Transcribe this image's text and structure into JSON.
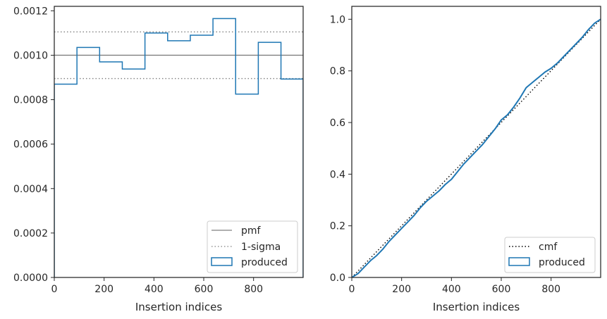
{
  "chart_data": [
    {
      "type": "histogram-step",
      "xlabel": "Insertion indices",
      "ylabel": "",
      "xlim": [
        0,
        999
      ],
      "ylim": [
        0,
        0.00122
      ],
      "xticks": [
        0,
        200,
        400,
        600,
        800
      ],
      "xtick_labels": [
        "0",
        "200",
        "400",
        "600",
        "800"
      ],
      "yticks": [
        0,
        0.0002,
        0.0004,
        0.0006,
        0.0008,
        0.001,
        0.0012
      ],
      "ytick_labels": [
        "0.0000",
        "0.0002",
        "0.0004",
        "0.0006",
        "0.0008",
        "0.0010",
        "0.0012"
      ],
      "reference_lines": [
        {
          "name": "pmf",
          "y": 0.001,
          "style": "solid",
          "color": "#808080"
        },
        {
          "name": "1-sigma",
          "y": [
            0.000895,
            0.001105
          ],
          "style": "dotted",
          "color": "#808080"
        }
      ],
      "series": [
        {
          "name": "produced",
          "color": "#1f77b4",
          "bin_edges": [
            0,
            91,
            182,
            273,
            364,
            455,
            546,
            637,
            728,
            819,
            910,
            999
          ],
          "values": [
            0.00087,
            0.001035,
            0.00097,
            0.000938,
            0.0011,
            0.001065,
            0.00109,
            0.001165,
            0.000825,
            0.001058,
            0.000893
          ]
        }
      ],
      "legend": {
        "placement": "lower-right",
        "entries": [
          "pmf",
          "1-sigma",
          "produced"
        ]
      }
    },
    {
      "type": "line",
      "xlabel": "Insertion indices",
      "ylabel": "",
      "xlim": [
        0,
        999
      ],
      "ylim": [
        0,
        1.05
      ],
      "xticks": [
        0,
        200,
        400,
        600,
        800
      ],
      "xtick_labels": [
        "0",
        "200",
        "400",
        "600",
        "800"
      ],
      "yticks": [
        0,
        0.2,
        0.4,
        0.6,
        0.8,
        1.0
      ],
      "ytick_labels": [
        "0.0",
        "0.2",
        "0.4",
        "0.6",
        "0.8",
        "1.0"
      ],
      "series": [
        {
          "name": "cmf",
          "style": "dotted",
          "color": "#000000",
          "x": [
            0,
            999
          ],
          "y": [
            0,
            1.0
          ]
        },
        {
          "name": "produced",
          "style": "solid",
          "color": "#1f77b4",
          "x": [
            0,
            25,
            50,
            75,
            100,
            125,
            150,
            175,
            200,
            225,
            250,
            275,
            300,
            325,
            350,
            375,
            400,
            425,
            450,
            475,
            500,
            525,
            550,
            575,
            600,
            625,
            650,
            675,
            700,
            725,
            750,
            775,
            800,
            825,
            850,
            875,
            900,
            925,
            950,
            975,
            999
          ],
          "y": [
            0,
            0.015,
            0.04,
            0.065,
            0.085,
            0.11,
            0.14,
            0.165,
            0.19,
            0.215,
            0.24,
            0.27,
            0.295,
            0.315,
            0.335,
            0.36,
            0.38,
            0.41,
            0.44,
            0.465,
            0.49,
            0.515,
            0.545,
            0.575,
            0.61,
            0.63,
            0.66,
            0.695,
            0.735,
            0.755,
            0.775,
            0.795,
            0.81,
            0.83,
            0.855,
            0.88,
            0.905,
            0.93,
            0.96,
            0.985,
            1.0
          ]
        }
      ],
      "legend": {
        "placement": "lower-right",
        "entries": [
          "cmf",
          "produced"
        ]
      }
    }
  ]
}
